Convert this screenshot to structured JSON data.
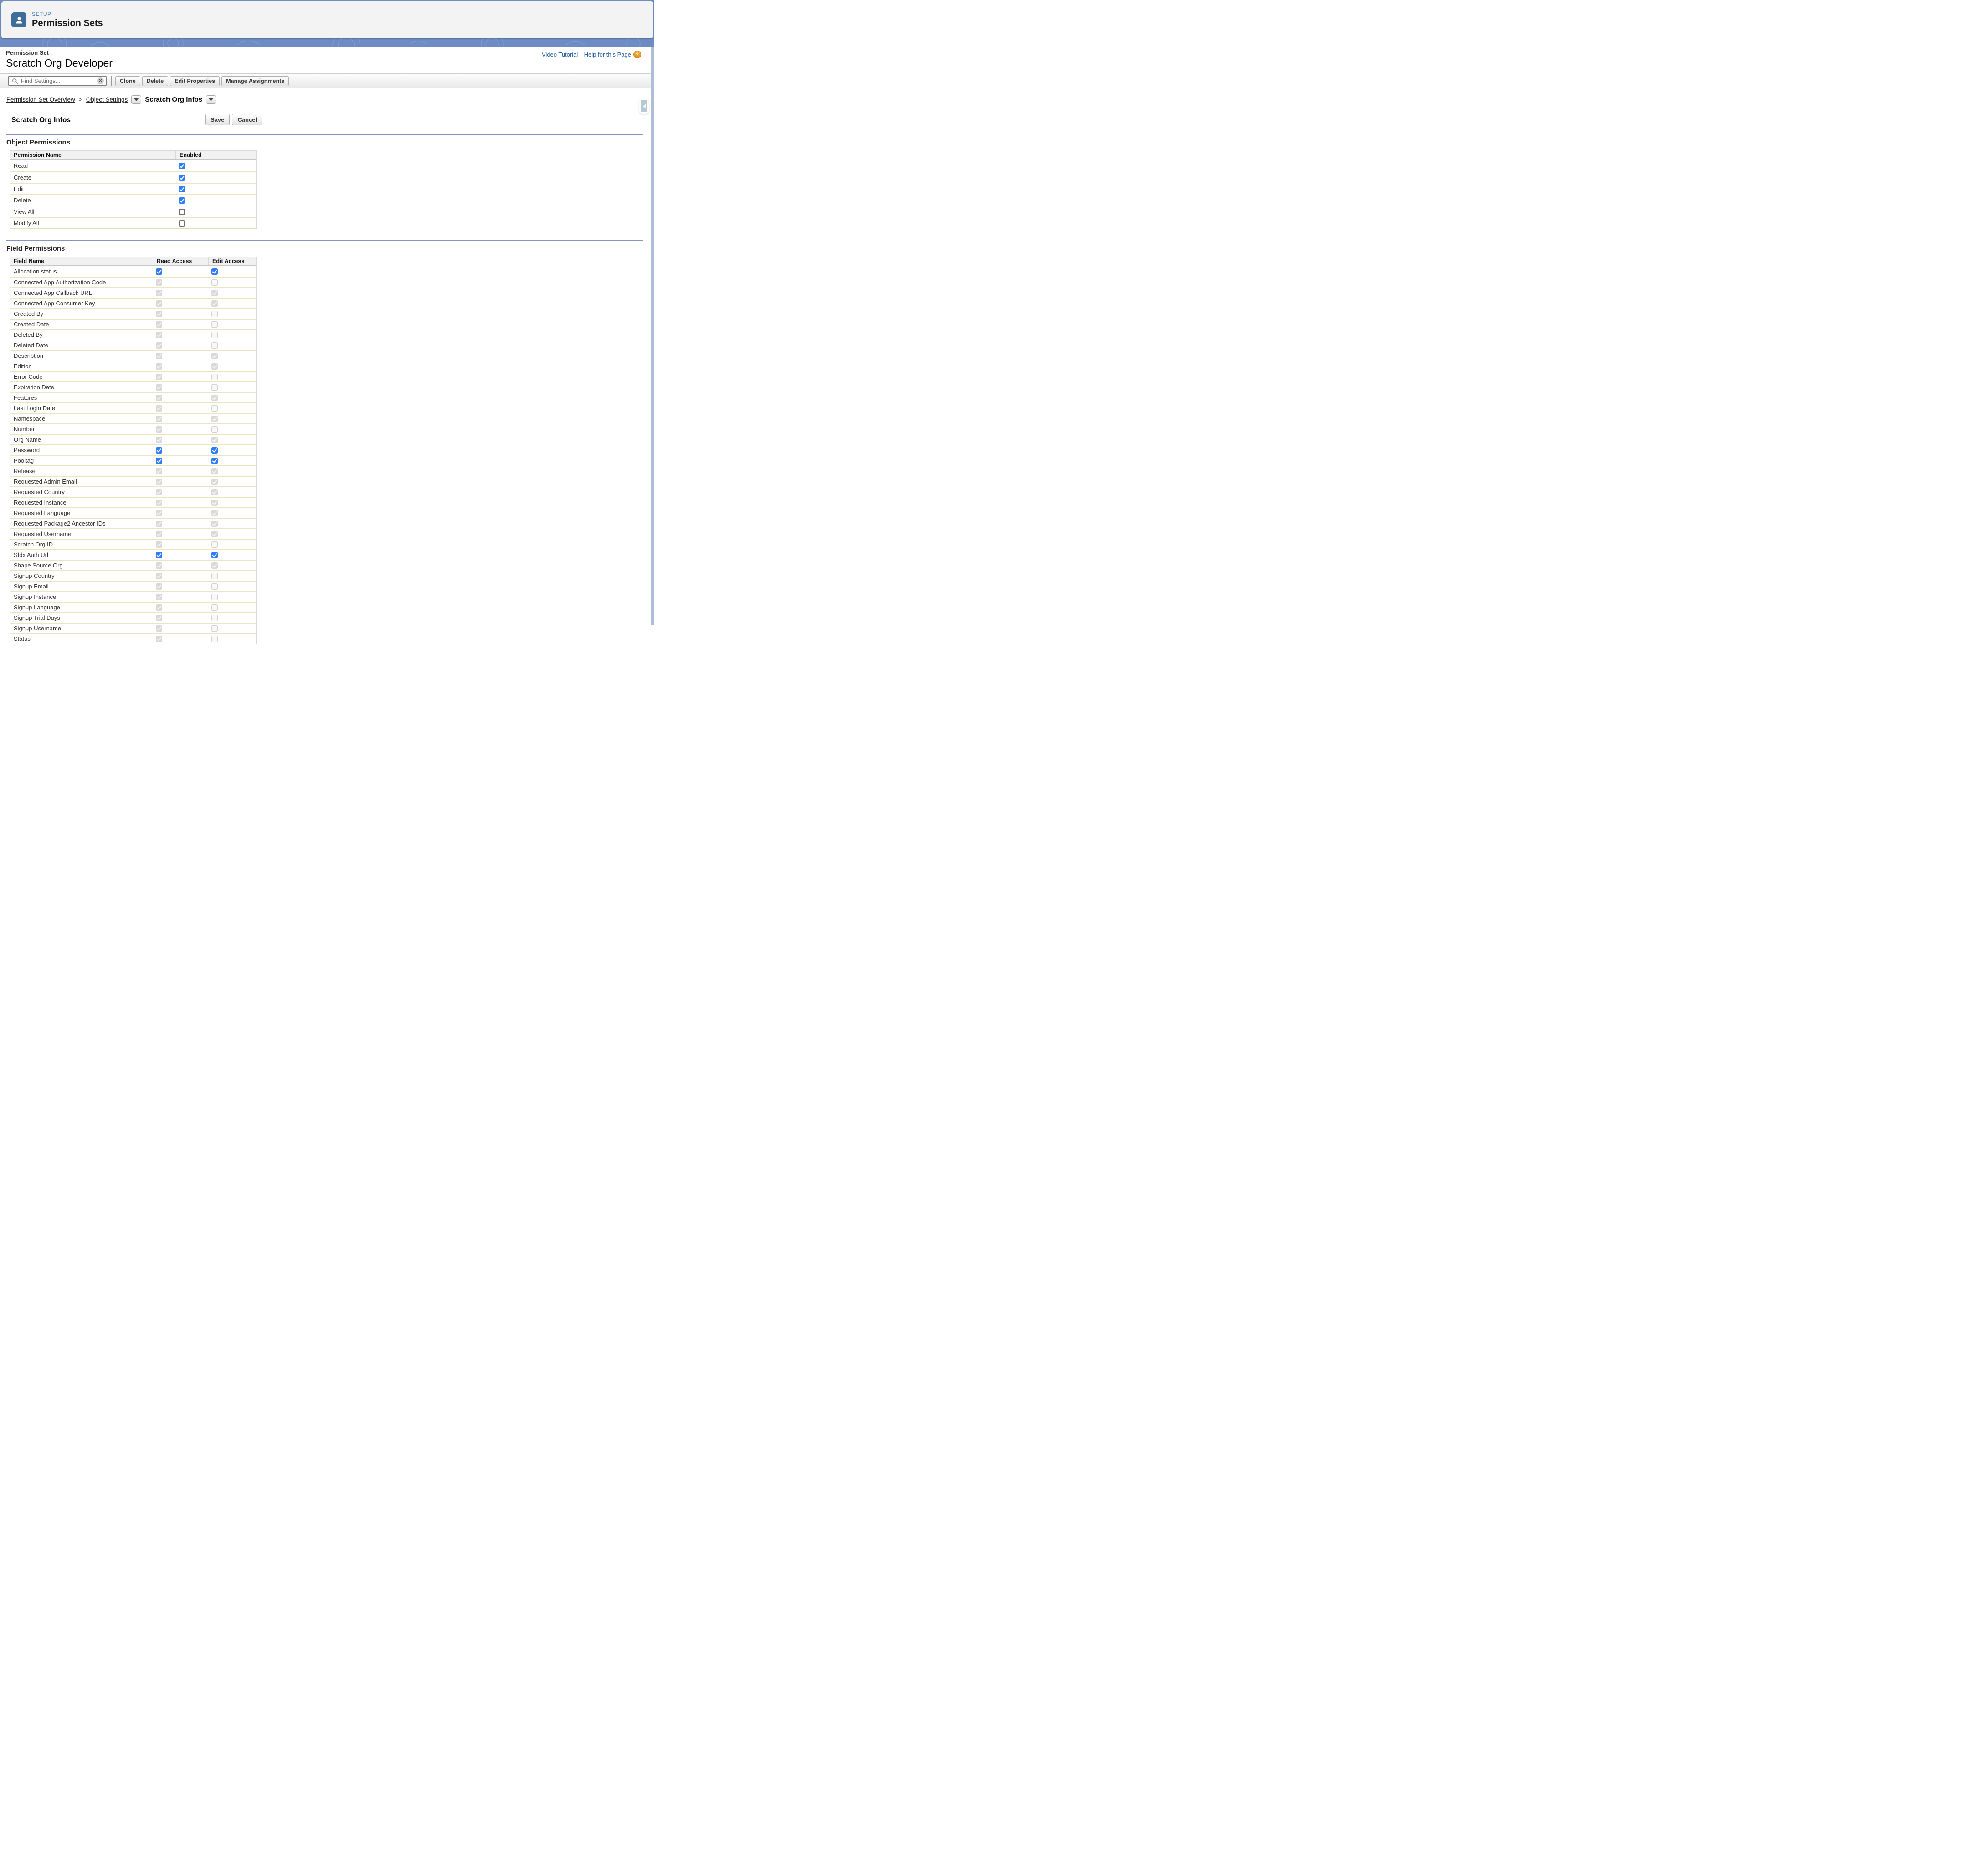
{
  "colors": {
    "band_blue": "#6d8cc3",
    "icon_blue": "#3e6d97",
    "checkbox_blue": "#2e7cf6",
    "link_blue": "#2460a6",
    "section_rule": "#8795bd",
    "row_separator": "#ece5c3",
    "help_icon_orange": "#e9a13b"
  },
  "app_header": {
    "eyebrow": "SETUP",
    "title": "Permission Sets"
  },
  "page_header": {
    "kicker": "Permission Set",
    "title": "Scratch Org Developer"
  },
  "help": {
    "video_link": "Video Tutorial",
    "separator": "|",
    "help_link": "Help for this Page"
  },
  "toolbar": {
    "search_placeholder": "Find Settings...",
    "buttons": [
      "Clone",
      "Delete",
      "Edit Properties",
      "Manage Assignments"
    ]
  },
  "breadcrumb": {
    "overview": "Permission Set Overview",
    "separator": ">",
    "object_settings": "Object Settings",
    "current": "Scratch Org Infos"
  },
  "detail": {
    "title": "Scratch Org Infos",
    "save_label": "Save",
    "cancel_label": "Cancel"
  },
  "object_permissions": {
    "heading": "Object Permissions",
    "columns": [
      "Permission Name",
      "Enabled"
    ],
    "rows": [
      {
        "name": "Read",
        "enabled": "checked"
      },
      {
        "name": "Create",
        "enabled": "checked"
      },
      {
        "name": "Edit",
        "enabled": "checked"
      },
      {
        "name": "Delete",
        "enabled": "checked"
      },
      {
        "name": "View All",
        "enabled": "unchecked"
      },
      {
        "name": "Modify All",
        "enabled": "unchecked"
      }
    ]
  },
  "field_permissions": {
    "heading": "Field Permissions",
    "columns": [
      "Field Name",
      "Read Access",
      "Edit Access"
    ],
    "rows": [
      {
        "name": "Allocation status",
        "read": "checked",
        "edit": "checked"
      },
      {
        "name": "Connected App Authorization Code",
        "read": "checked-disabled",
        "edit": "unchecked-disabled"
      },
      {
        "name": "Connected App Callback URL",
        "read": "checked-disabled",
        "edit": "checked-disabled"
      },
      {
        "name": "Connected App Consumer Key",
        "read": "checked-disabled",
        "edit": "checked-disabled"
      },
      {
        "name": "Created By",
        "read": "checked-disabled",
        "edit": "unchecked-disabled"
      },
      {
        "name": "Created Date",
        "read": "checked-disabled",
        "edit": "unchecked-disabled"
      },
      {
        "name": "Deleted By",
        "read": "checked-disabled",
        "edit": "unchecked-disabled"
      },
      {
        "name": "Deleted Date",
        "read": "checked-disabled",
        "edit": "unchecked-disabled"
      },
      {
        "name": "Description",
        "read": "checked-disabled",
        "edit": "checked-disabled"
      },
      {
        "name": "Edition",
        "read": "checked-disabled",
        "edit": "checked-disabled"
      },
      {
        "name": "Error Code",
        "read": "checked-disabled",
        "edit": "unchecked-disabled"
      },
      {
        "name": "Expiration Date",
        "read": "checked-disabled",
        "edit": "unchecked-disabled"
      },
      {
        "name": "Features",
        "read": "checked-disabled",
        "edit": "checked-disabled"
      },
      {
        "name": "Last Login Date",
        "read": "checked-disabled",
        "edit": "unchecked-disabled"
      },
      {
        "name": "Namespace",
        "read": "checked-disabled",
        "edit": "checked-disabled"
      },
      {
        "name": "Number",
        "read": "checked-disabled",
        "edit": "unchecked-disabled"
      },
      {
        "name": "Org Name",
        "read": "checked-disabled",
        "edit": "checked-disabled"
      },
      {
        "name": "Password",
        "read": "checked",
        "edit": "checked"
      },
      {
        "name": "Pooltag",
        "read": "checked",
        "edit": "checked"
      },
      {
        "name": "Release",
        "read": "checked-disabled",
        "edit": "checked-disabled"
      },
      {
        "name": "Requested Admin Email",
        "read": "checked-disabled",
        "edit": "checked-disabled"
      },
      {
        "name": "Requested Country",
        "read": "checked-disabled",
        "edit": "checked-disabled"
      },
      {
        "name": "Requested Instance",
        "read": "checked-disabled",
        "edit": "checked-disabled"
      },
      {
        "name": "Requested Language",
        "read": "checked-disabled",
        "edit": "checked-disabled"
      },
      {
        "name": "Requested Package2 Ancestor IDs",
        "read": "checked-disabled",
        "edit": "checked-disabled"
      },
      {
        "name": "Requested Username",
        "read": "checked-disabled",
        "edit": "checked-disabled"
      },
      {
        "name": "Scratch Org ID",
        "read": "checked-disabled",
        "edit": "unchecked-disabled"
      },
      {
        "name": "Sfdx Auth Url",
        "read": "checked",
        "edit": "checked"
      },
      {
        "name": "Shape Source Org",
        "read": "checked-disabled",
        "edit": "checked-disabled"
      },
      {
        "name": "Signup Country",
        "read": "checked-disabled",
        "edit": "unchecked-disabled"
      },
      {
        "name": "Signup Email",
        "read": "checked-disabled",
        "edit": "unchecked-disabled"
      },
      {
        "name": "Signup Instance",
        "read": "checked-disabled",
        "edit": "unchecked-disabled"
      },
      {
        "name": "Signup Language",
        "read": "checked-disabled",
        "edit": "unchecked-disabled"
      },
      {
        "name": "Signup Trial Days",
        "read": "checked-disabled",
        "edit": "unchecked-disabled"
      },
      {
        "name": "Signup Username",
        "read": "checked-disabled",
        "edit": "unchecked-disabled"
      },
      {
        "name": "Status",
        "read": "checked-disabled",
        "edit": "unchecked-disabled"
      }
    ]
  }
}
